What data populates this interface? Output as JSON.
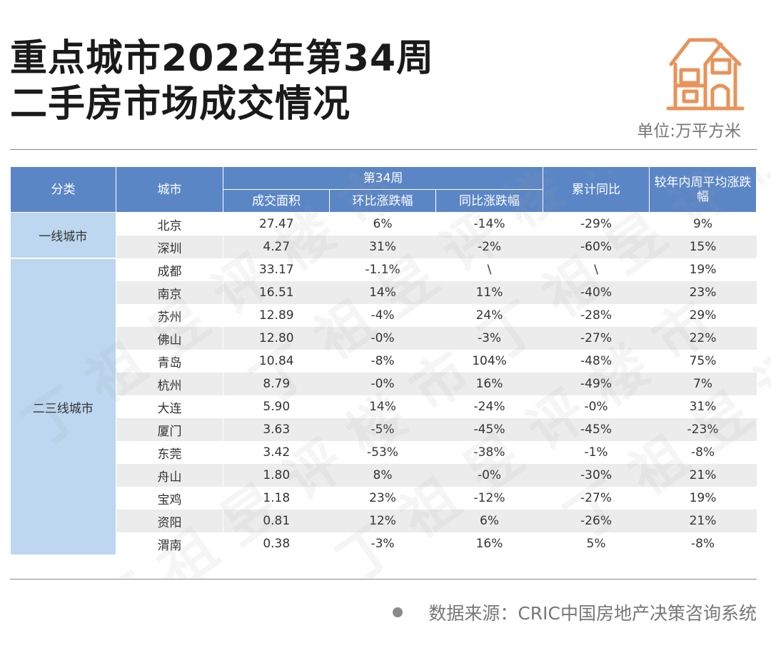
{
  "title": {
    "line1": "重点城市2022年第34周",
    "line2": "二手房市场成交情况"
  },
  "unit": "单位:万平方米",
  "watermark": "丁祖昱评楼市",
  "source": "数据来源：CRIC中国房地产决策咨询系统",
  "colors": {
    "header": "#5b86c6",
    "category": "#bcd7ef",
    "icon": "#e8935a"
  },
  "icons": [
    "house-icon",
    "bullet-dot-icon"
  ],
  "chart_data": {
    "type": "table",
    "header": {
      "category": "分类",
      "city": "城市",
      "week_group": "第34周",
      "volume": "成交面积",
      "mom": "环比涨跌幅",
      "yoy": "同比涨跌幅",
      "cumulative_yoy": "累计同比",
      "vs_avg": "较年内周平均涨跌幅"
    },
    "groups": [
      {
        "name": "一线城市",
        "span": 2
      },
      {
        "name": "二三线城市",
        "span": 13
      }
    ],
    "rows": [
      {
        "city": "北京",
        "volume": "27.47",
        "mom": "6%",
        "yoy": "-14%",
        "cumulative_yoy": "-29%",
        "vs_avg": "9%"
      },
      {
        "city": "深圳",
        "volume": "4.27",
        "mom": "31%",
        "yoy": "-2%",
        "cumulative_yoy": "-60%",
        "vs_avg": "15%"
      },
      {
        "city": "成都",
        "volume": "33.17",
        "mom": "-1.1%",
        "yoy": "\\",
        "cumulative_yoy": "\\",
        "vs_avg": "19%"
      },
      {
        "city": "南京",
        "volume": "16.51",
        "mom": "14%",
        "yoy": "11%",
        "cumulative_yoy": "-40%",
        "vs_avg": "23%"
      },
      {
        "city": "苏州",
        "volume": "12.89",
        "mom": "-4%",
        "yoy": "24%",
        "cumulative_yoy": "-28%",
        "vs_avg": "29%"
      },
      {
        "city": "佛山",
        "volume": "12.80",
        "mom": "-0%",
        "yoy": "-3%",
        "cumulative_yoy": "-27%",
        "vs_avg": "22%"
      },
      {
        "city": "青岛",
        "volume": "10.84",
        "mom": "-8%",
        "yoy": "104%",
        "cumulative_yoy": "-48%",
        "vs_avg": "75%"
      },
      {
        "city": "杭州",
        "volume": "8.79",
        "mom": "-0%",
        "yoy": "16%",
        "cumulative_yoy": "-49%",
        "vs_avg": "7%"
      },
      {
        "city": "大连",
        "volume": "5.90",
        "mom": "14%",
        "yoy": "-24%",
        "cumulative_yoy": "-0%",
        "vs_avg": "31%"
      },
      {
        "city": "厦门",
        "volume": "3.63",
        "mom": "-5%",
        "yoy": "-45%",
        "cumulative_yoy": "-45%",
        "vs_avg": "-23%"
      },
      {
        "city": "东莞",
        "volume": "3.42",
        "mom": "-53%",
        "yoy": "-38%",
        "cumulative_yoy": "-1%",
        "vs_avg": "-8%"
      },
      {
        "city": "舟山",
        "volume": "1.80",
        "mom": "8%",
        "yoy": "-0%",
        "cumulative_yoy": "-30%",
        "vs_avg": "21%"
      },
      {
        "city": "宝鸡",
        "volume": "1.18",
        "mom": "23%",
        "yoy": "-12%",
        "cumulative_yoy": "-27%",
        "vs_avg": "19%"
      },
      {
        "city": "资阳",
        "volume": "0.81",
        "mom": "12%",
        "yoy": "6%",
        "cumulative_yoy": "-26%",
        "vs_avg": "21%"
      },
      {
        "city": "渭南",
        "volume": "0.38",
        "mom": "-3%",
        "yoy": "16%",
        "cumulative_yoy": "5%",
        "vs_avg": "-8%"
      }
    ]
  }
}
